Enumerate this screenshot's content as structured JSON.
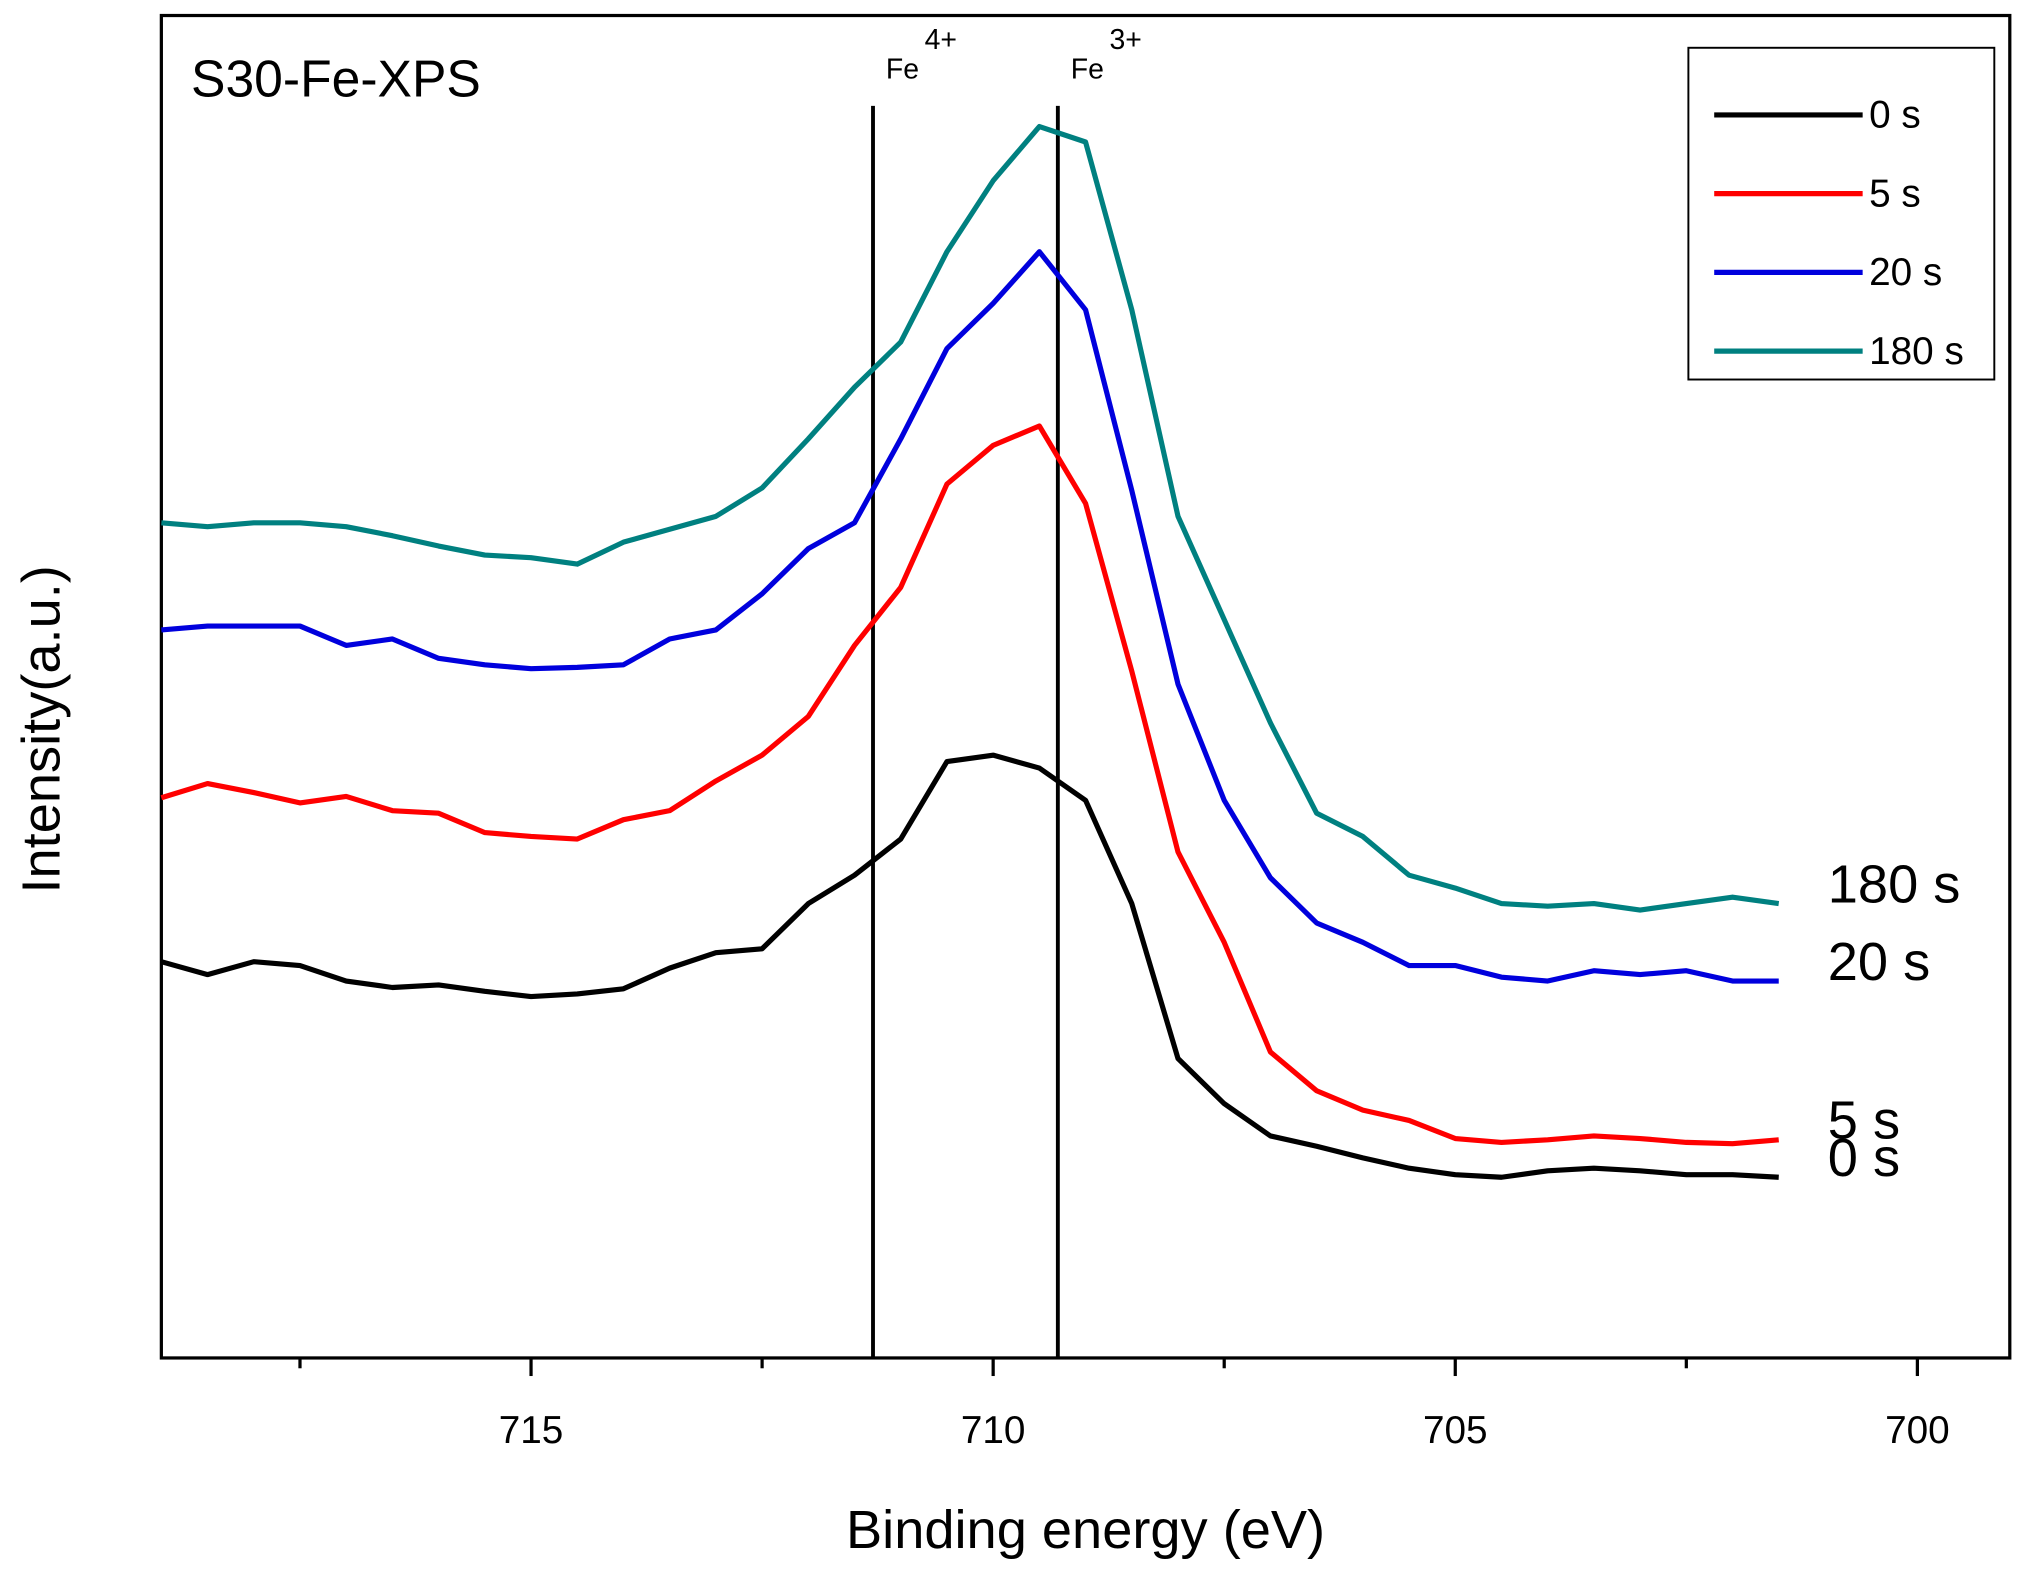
{
  "chart_data": {
    "type": "line",
    "title": "S30-Fe-XPS",
    "xlabel": "Binding energy (eV)",
    "ylabel": "Intensity(a.u.)",
    "xlim": [
      719,
      699
    ],
    "xticks": [
      715,
      710,
      705,
      700
    ],
    "xminor_ticks": [
      717.5,
      712.5,
      707.5,
      702.5
    ],
    "ylim": [
      0,
      1040
    ],
    "x": [
      719,
      718.5,
      718,
      717.5,
      717,
      716.5,
      716,
      715.5,
      715,
      714.5,
      714,
      713.5,
      713,
      712.5,
      712,
      711.5,
      711,
      710.5,
      710,
      709.5,
      709,
      708.5,
      708,
      707.5,
      707,
      706.5,
      706,
      705.5,
      705,
      704.5,
      704,
      703.5,
      703,
      702.5,
      702,
      701.5
    ],
    "series": [
      {
        "name": "0 s",
        "color": "#000000",
        "values": [
          307,
          297,
          307,
          304,
          292,
          287,
          289,
          284,
          280,
          282,
          286,
          302,
          314,
          317,
          352,
          374,
          402,
          462,
          467,
          457,
          432,
          352,
          232,
          197,
          172,
          164,
          155,
          147,
          142,
          140,
          145,
          147,
          145,
          142,
          142,
          140
        ]
      },
      {
        "name": "5 s",
        "color": "#ff0000",
        "values": [
          434,
          445,
          438,
          430,
          435,
          424,
          422,
          407,
          404,
          402,
          417,
          424,
          447,
          467,
          497,
          552,
          597,
          677,
          707,
          722,
          662,
          532,
          392,
          322,
          237,
          207,
          192,
          184,
          170,
          167,
          169,
          172,
          170,
          167,
          166,
          169
        ]
      },
      {
        "name": "20 s",
        "color": "#0000dd",
        "values": [
          564,
          567,
          567,
          567,
          552,
          557,
          542,
          537,
          534,
          535,
          537,
          557,
          564,
          592,
          627,
          647,
          712,
          782,
          817,
          857,
          812,
          672,
          522,
          432,
          372,
          337,
          322,
          304,
          304,
          295,
          292,
          300,
          297,
          300,
          292,
          292
        ]
      },
      {
        "name": "180 s",
        "color": "#008080",
        "values": [
          647,
          644,
          647,
          647,
          644,
          637,
          629,
          622,
          620,
          615,
          632,
          642,
          652,
          674,
          712,
          752,
          787,
          857,
          912,
          954,
          942,
          812,
          652,
          572,
          492,
          422,
          404,
          374,
          364,
          352,
          350,
          352,
          347,
          352,
          357,
          352
        ]
      }
    ],
    "annotations": [
      {
        "label": "Fe",
        "superscript": "4+",
        "x": 711.3
      },
      {
        "label": "Fe",
        "superscript": "3+",
        "x": 709.3
      }
    ],
    "legend": "upper right"
  }
}
